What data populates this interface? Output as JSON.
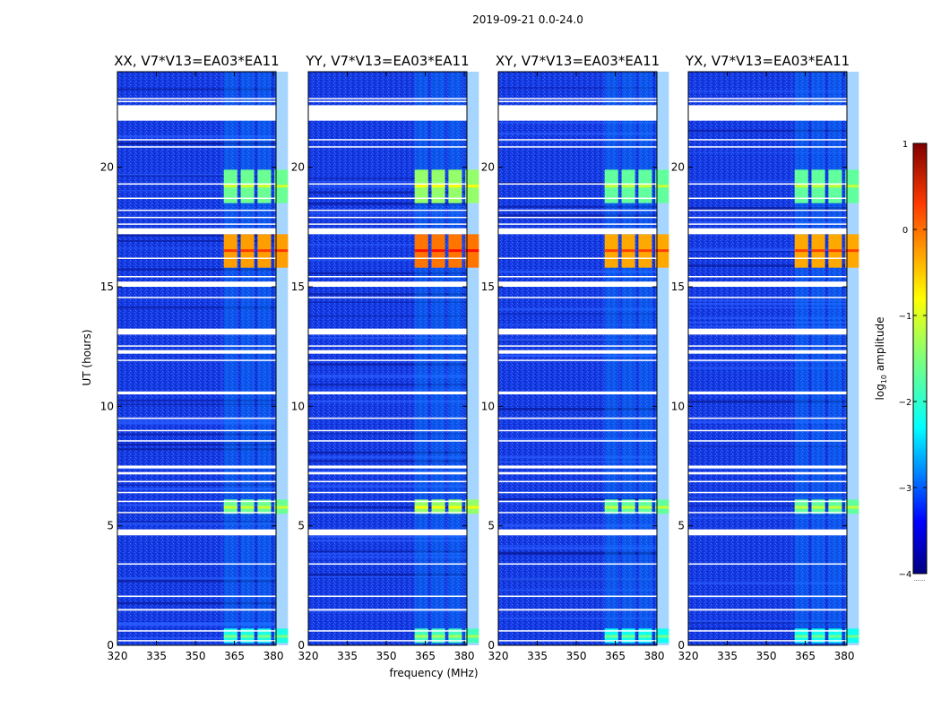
{
  "figure_title": "2019-09-21 0.0-24.0",
  "chart_data": {
    "type": "heatmap",
    "title": "2019-09-21 0.0-24.0",
    "xlabel": "frequency (MHz)",
    "ylabel": "UT (hours)",
    "xlim": [
      320,
      381
    ],
    "ylim": [
      0,
      24
    ],
    "xticks": [
      320,
      335,
      350,
      365,
      380
    ],
    "yticks": [
      0,
      5,
      10,
      15,
      20
    ],
    "panels": [
      {
        "title": "XX, V7*V13=EA03*EA11",
        "pol": "XX"
      },
      {
        "title": "YY, V7*V13=EA03*EA11",
        "pol": "YY"
      },
      {
        "title": "XY, V7*V13=EA03*EA11",
        "pol": "XY"
      },
      {
        "title": "YX, V7*V13=EA03*EA11",
        "pol": "YX"
      }
    ],
    "colorbar": {
      "label": "log10 amplitude",
      "range": [
        -4,
        1
      ],
      "ticks": [
        1,
        0,
        -1,
        -2,
        -3,
        -4
      ],
      "tick_labels": [
        "1",
        "0",
        "−1",
        "−2",
        "−3",
        "−4"
      ],
      "colormap": "jet"
    },
    "background_level": -3.2,
    "rfi_channels_mhz": [
      363.5,
      370,
      376.5,
      383
    ],
    "rfi_bursts": [
      {
        "ut_start": 0.1,
        "ut_end": 0.7,
        "level": -2.0
      },
      {
        "ut_start": 5.5,
        "ut_end": 6.1,
        "level": -1.6
      },
      {
        "ut_start": 15.8,
        "ut_end": 17.2,
        "level": -0.4
      },
      {
        "ut_start": 18.5,
        "ut_end": 19.9,
        "level": -1.6
      }
    ],
    "flagged_ut_ranges": [
      [
        0.18,
        0.22
      ],
      [
        0.6,
        0.63
      ],
      [
        1.45,
        1.52
      ],
      [
        2.05,
        2.08
      ],
      [
        3.4,
        3.43
      ],
      [
        4.6,
        4.85
      ],
      [
        5.55,
        5.58
      ],
      [
        6.0,
        6.05
      ],
      [
        6.4,
        6.42
      ],
      [
        6.85,
        6.88
      ],
      [
        7.15,
        7.25
      ],
      [
        7.4,
        7.52
      ],
      [
        8.55,
        8.58
      ],
      [
        8.98,
        9.01
      ],
      [
        9.5,
        9.53
      ],
      [
        10.5,
        10.62
      ],
      [
        11.92,
        11.95
      ],
      [
        12.2,
        12.35
      ],
      [
        12.5,
        12.55
      ],
      [
        13.0,
        13.25
      ],
      [
        14.55,
        14.58
      ],
      [
        15.0,
        15.22
      ],
      [
        15.4,
        15.45
      ],
      [
        16.2,
        16.22
      ],
      [
        17.2,
        17.45
      ],
      [
        17.6,
        17.65
      ],
      [
        17.9,
        17.93
      ],
      [
        18.2,
        18.23
      ],
      [
        18.7,
        18.73
      ],
      [
        19.3,
        19.33
      ],
      [
        20.85,
        20.88
      ],
      [
        21.15,
        21.18
      ],
      [
        21.95,
        22.6
      ],
      [
        22.75,
        22.78
      ],
      [
        22.85,
        22.9
      ]
    ],
    "colorbar_tiny_label": "......."
  }
}
